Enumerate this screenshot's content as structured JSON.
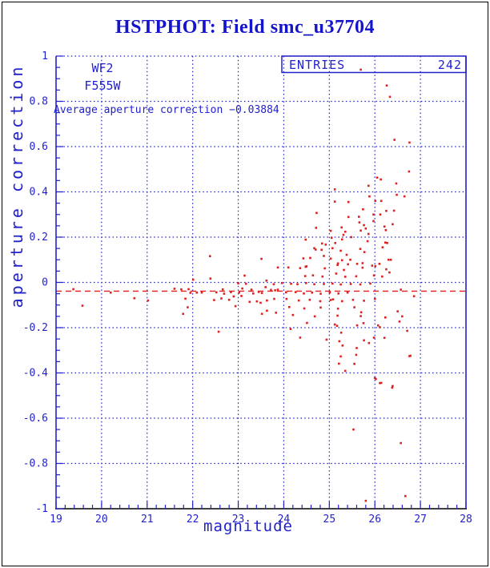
{
  "title": "HSTPHOT: Field smc_u37704",
  "colors": {
    "accent_blue": "#2222cc",
    "data_red": "#dd2222",
    "background": "#ffffff",
    "outer_border": "#000000"
  },
  "annotations": {
    "detector": "WF2",
    "filter": "F555W",
    "average_label": "Average aperture correction −0.03884",
    "entries_label": "ENTRIES",
    "entries_value": "242"
  },
  "chart_data": {
    "type": "scatter",
    "title": "HSTPHOT: Field smc_u37704",
    "xlabel": "magnitude",
    "ylabel": "aperture correction",
    "xlim": [
      19,
      28
    ],
    "ylim": [
      -1,
      1
    ],
    "x_major_step": 1,
    "x_minor_step": 0.2,
    "y_major_step": 0.2,
    "y_minor_step": 0.05,
    "xtick_labels": [
      "19",
      "20",
      "21",
      "22",
      "23",
      "24",
      "25",
      "26",
      "27",
      "28"
    ],
    "ytick_labels": [
      "1",
      "0.8",
      "0.6",
      "0.4",
      "0.2",
      "0",
      "-0.2",
      "-0.4",
      "-0.6",
      "-0.8",
      "-1"
    ],
    "grid": true,
    "legend_position": "none",
    "entries": 242,
    "mean_line": -0.03884,
    "points": [
      [
        19.38,
        -0.03
      ],
      [
        19.58,
        -0.103
      ],
      [
        20.2,
        -0.045
      ],
      [
        20.72,
        -0.07
      ],
      [
        21.02,
        -0.08
      ],
      [
        21.6,
        -0.028
      ],
      [
        21.75,
        -0.031
      ],
      [
        21.79,
        -0.139
      ],
      [
        21.84,
        -0.072
      ],
      [
        21.89,
        -0.11
      ],
      [
        21.91,
        -0.03
      ],
      [
        21.95,
        -0.046
      ],
      [
        22.01,
        0.012
      ],
      [
        22.09,
        -0.045
      ],
      [
        22.2,
        -0.045
      ],
      [
        22.38,
        0.116
      ],
      [
        22.39,
        0.017
      ],
      [
        22.47,
        -0.078
      ],
      [
        22.52,
        -0.044
      ],
      [
        22.57,
        -0.218
      ],
      [
        22.63,
        -0.071
      ],
      [
        22.66,
        -0.031
      ],
      [
        22.69,
        -0.05
      ],
      [
        22.8,
        -0.077
      ],
      [
        22.84,
        -0.043
      ],
      [
        22.9,
        -0.062
      ],
      [
        22.94,
        -0.105
      ],
      [
        23.0,
        -0.004
      ],
      [
        23.02,
        -0.045
      ],
      [
        23.07,
        -0.06
      ],
      [
        23.09,
        -0.027
      ],
      [
        23.14,
        0.03
      ],
      [
        23.17,
        -0.006
      ],
      [
        23.25,
        -0.086
      ],
      [
        23.29,
        -0.032
      ],
      [
        23.33,
        -0.049
      ],
      [
        23.41,
        -0.084
      ],
      [
        23.45,
        -0.042
      ],
      [
        23.49,
        -0.09
      ],
      [
        23.51,
        0.104
      ],
      [
        23.52,
        -0.047
      ],
      [
        23.52,
        -0.139
      ],
      [
        23.6,
        -0.021
      ],
      [
        23.62,
        0.008
      ],
      [
        23.63,
        -0.08
      ],
      [
        23.63,
        -0.125
      ],
      [
        23.72,
        -0.033
      ],
      [
        23.78,
        -0.008
      ],
      [
        23.79,
        -0.073
      ],
      [
        23.81,
        -0.035
      ],
      [
        23.83,
        -0.134
      ],
      [
        23.87,
        -0.032
      ],
      [
        23.87,
        0.066
      ],
      [
        23.96,
        -0.003
      ],
      [
        24.05,
        -0.044
      ],
      [
        24.06,
        -0.073
      ],
      [
        24.1,
        0.066
      ],
      [
        24.12,
        -0.109
      ],
      [
        24.15,
        -0.206
      ],
      [
        24.16,
        -0.006
      ],
      [
        24.2,
        -0.144
      ],
      [
        24.26,
        -0.043
      ],
      [
        24.3,
        -0.008
      ],
      [
        24.33,
        -0.08
      ],
      [
        24.36,
        -0.244
      ],
      [
        24.36,
        0.063
      ],
      [
        24.43,
        0.106
      ],
      [
        24.44,
        -0.049
      ],
      [
        24.45,
        -0.115
      ],
      [
        24.47,
        0.028
      ],
      [
        24.48,
        0.069
      ],
      [
        24.48,
        0.189
      ],
      [
        24.49,
        -0.003
      ],
      [
        24.5,
        0.071
      ],
      [
        24.51,
        -0.179
      ],
      [
        24.57,
        -0.077
      ],
      [
        24.58,
        0.108
      ],
      [
        24.62,
        -0.045
      ],
      [
        24.64,
        0.031
      ],
      [
        24.67,
        -0.008
      ],
      [
        24.67,
        0.151
      ],
      [
        24.68,
        -0.15
      ],
      [
        24.7,
        0.145
      ],
      [
        24.71,
        0.241
      ],
      [
        24.72,
        0.307
      ],
      [
        24.8,
        -0.083
      ],
      [
        24.81,
        -0.111
      ],
      [
        24.81,
        -0.05
      ],
      [
        24.83,
        0.144
      ],
      [
        24.84,
        0.172
      ],
      [
        24.85,
        0.026
      ],
      [
        24.88,
        -0.007
      ],
      [
        24.88,
        0.117
      ],
      [
        24.9,
        0.062
      ],
      [
        24.92,
        0.167
      ],
      [
        24.94,
        -0.253
      ],
      [
        25.01,
        -0.045
      ],
      [
        25.03,
        -0.078
      ],
      [
        25.03,
        0.105
      ],
      [
        25.03,
        0.228
      ],
      [
        25.05,
        0.197
      ],
      [
        25.07,
        -0.005
      ],
      [
        25.07,
        0.151
      ],
      [
        25.08,
        -0.075
      ],
      [
        25.12,
        -0.186
      ],
      [
        25.12,
        0.357
      ],
      [
        25.12,
        0.411
      ],
      [
        25.13,
        0.174
      ],
      [
        25.15,
        0.039
      ],
      [
        25.17,
        -0.192
      ],
      [
        25.18,
        -0.147
      ],
      [
        25.18,
        0.077
      ],
      [
        25.19,
        -0.116
      ],
      [
        25.19,
        0.084
      ],
      [
        25.2,
        -0.049
      ],
      [
        25.21,
        -0.359
      ],
      [
        25.22,
        -0.26
      ],
      [
        25.25,
        -0.009
      ],
      [
        25.25,
        -0.327
      ],
      [
        25.25,
        0.14
      ],
      [
        25.26,
        -0.222
      ],
      [
        25.27,
        0.243
      ],
      [
        25.28,
        -0.083
      ],
      [
        25.28,
        0.098
      ],
      [
        25.28,
        0.19
      ],
      [
        25.29,
        -0.279
      ],
      [
        25.31,
        0.21
      ],
      [
        25.32,
        0.055
      ],
      [
        25.35,
        -0.391
      ],
      [
        25.35,
        0.025
      ],
      [
        25.35,
        0.224
      ],
      [
        25.38,
        0.122
      ],
      [
        25.4,
        -0.045
      ],
      [
        25.41,
        0.08
      ],
      [
        25.42,
        0.289
      ],
      [
        25.42,
        0.355
      ],
      [
        25.46,
        0.1
      ],
      [
        25.47,
        -0.007
      ],
      [
        25.48,
        0.2
      ],
      [
        25.52,
        -0.077
      ],
      [
        25.53,
        -0.65
      ],
      [
        25.55,
        -0.11
      ],
      [
        25.55,
        -0.36
      ],
      [
        25.59,
        -0.32
      ],
      [
        25.59,
        0.027
      ],
      [
        25.6,
        -0.29
      ],
      [
        25.61,
        -0.19
      ],
      [
        25.61,
        0.082
      ],
      [
        25.65,
        0.29
      ],
      [
        25.66,
        0.265
      ],
      [
        25.68,
        -0.009
      ],
      [
        25.68,
        0.148
      ],
      [
        25.69,
        -0.149
      ],
      [
        25.69,
        0.229
      ],
      [
        25.69,
        0.94
      ],
      [
        25.7,
        -0.132
      ],
      [
        25.73,
        0.065
      ],
      [
        25.73,
        0.085
      ],
      [
        25.74,
        0.323
      ],
      [
        25.75,
        -0.18
      ],
      [
        25.76,
        -0.081
      ],
      [
        25.76,
        -0.256
      ],
      [
        25.76,
        0.253
      ],
      [
        25.77,
        0.134
      ],
      [
        25.8,
        -0.965
      ],
      [
        25.8,
        0.238
      ],
      [
        25.84,
        0.182
      ],
      [
        25.86,
        0.427
      ],
      [
        25.86,
        0.214
      ],
      [
        25.87,
        -0.268
      ],
      [
        25.88,
        0.38
      ],
      [
        25.9,
        -0.005
      ],
      [
        25.94,
        0.074
      ],
      [
        25.97,
        0.271
      ],
      [
        25.97,
        0.3
      ],
      [
        25.98,
        -0.244
      ],
      [
        25.98,
        0.031
      ],
      [
        26.0,
        -0.073
      ],
      [
        26.0,
        -0.422
      ],
      [
        26.01,
        0.072
      ],
      [
        26.01,
        0.36
      ],
      [
        26.02,
        -0.427
      ],
      [
        26.05,
        0.463
      ],
      [
        26.07,
        -0.19
      ],
      [
        26.1,
        0.082
      ],
      [
        26.11,
        -0.198
      ],
      [
        26.11,
        -0.445
      ],
      [
        26.12,
        0.3
      ],
      [
        26.13,
        0.455
      ],
      [
        26.14,
        -0.444
      ],
      [
        26.14,
        0.36
      ],
      [
        26.16,
        0.026
      ],
      [
        26.17,
        0.155
      ],
      [
        26.21,
        -0.245
      ],
      [
        26.21,
        0.247
      ],
      [
        26.23,
        -0.155
      ],
      [
        26.23,
        0.176
      ],
      [
        26.24,
        0.231
      ],
      [
        26.25,
        0.058
      ],
      [
        26.25,
        0.316
      ],
      [
        26.26,
        0.87
      ],
      [
        26.27,
        0.174
      ],
      [
        26.3,
        0.1
      ],
      [
        26.32,
        0.044
      ],
      [
        26.33,
        0.82
      ],
      [
        26.35,
        0.1
      ],
      [
        26.38,
        -0.465
      ],
      [
        26.39,
        -0.458
      ],
      [
        26.39,
        0.257
      ],
      [
        26.42,
        0.317
      ],
      [
        26.43,
        0.63
      ],
      [
        26.47,
        0.437
      ],
      [
        26.48,
        0.387
      ],
      [
        26.5,
        -0.128
      ],
      [
        26.54,
        -0.173
      ],
      [
        26.57,
        -0.032
      ],
      [
        26.57,
        -0.71
      ],
      [
        26.6,
        -0.15
      ],
      [
        26.65,
        0.38
      ],
      [
        26.67,
        -0.944
      ],
      [
        26.71,
        -0.214
      ],
      [
        26.75,
        0.49
      ],
      [
        26.76,
        -0.326
      ],
      [
        26.76,
        0.618
      ],
      [
        26.78,
        -0.324
      ],
      [
        26.86,
        -0.061
      ]
    ]
  }
}
